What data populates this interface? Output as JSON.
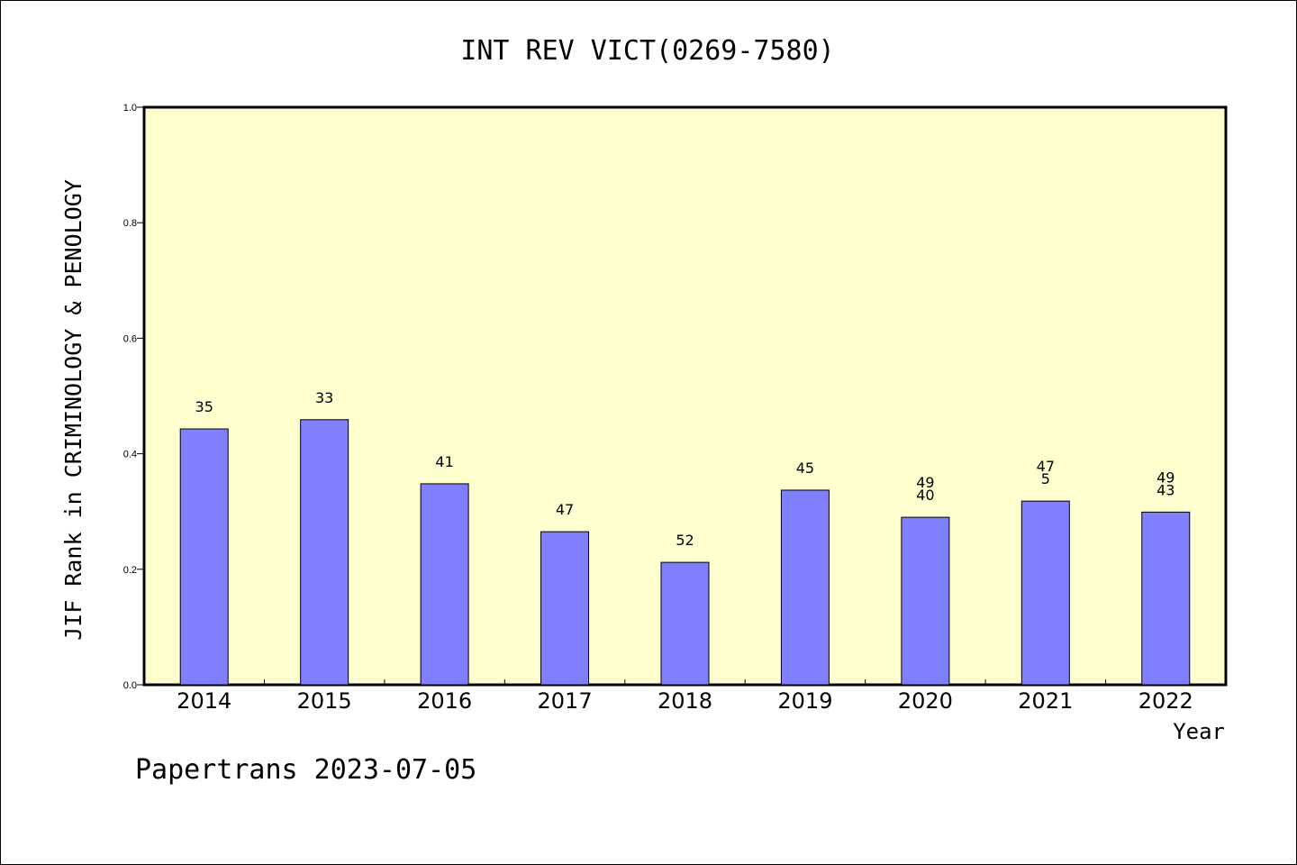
{
  "chart_data": {
    "type": "bar",
    "title": "INT REV VICT(0269-7580)",
    "xlabel": "Year",
    "ylabel": "JIF Rank in CRIMINOLOGY & PENOLOGY",
    "ylim": [
      0,
      1.0
    ],
    "yticks": [
      "0.0",
      "0.2",
      "0.4",
      "0.6",
      "0.8",
      "1.0"
    ],
    "categories": [
      "2014",
      "2015",
      "2016",
      "2017",
      "2018",
      "2019",
      "2020",
      "2021",
      "2022"
    ],
    "values": [
      0.443,
      0.459,
      0.348,
      0.265,
      0.212,
      0.337,
      0.29,
      0.318,
      0.299
    ],
    "bar_labels": [
      [
        "35"
      ],
      [
        "33"
      ],
      [
        "41"
      ],
      [
        "47"
      ],
      [
        "52"
      ],
      [
        "45"
      ],
      [
        "49",
        "40"
      ],
      [
        "47",
        "5"
      ],
      [
        "49",
        "43"
      ]
    ],
    "grid": false,
    "colors": {
      "bar": "#8080ff",
      "plot_bg": "#ffffd0"
    }
  },
  "footer": "Papertrans 2023-07-05"
}
